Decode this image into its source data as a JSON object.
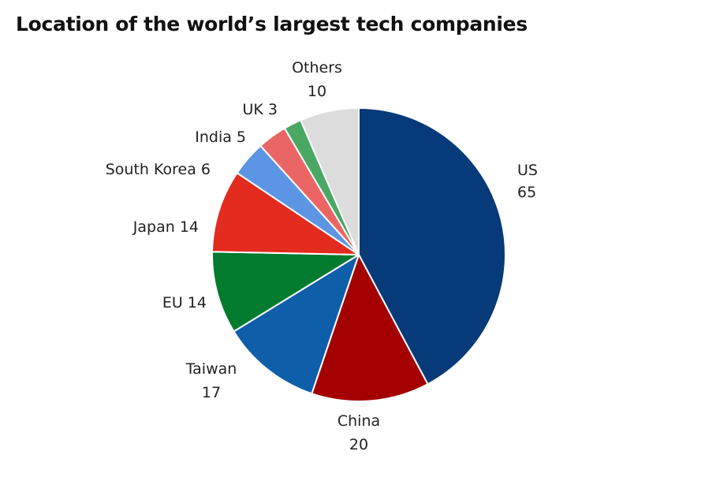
{
  "chart_data": {
    "type": "pie",
    "title": "Location of the world’s largest tech companies",
    "start_angle_deg": 0,
    "direction": "clockwise",
    "slices": [
      {
        "name": "US",
        "value": 65,
        "color": "#063a78",
        "label_lines": [
          "US",
          "65"
        ]
      },
      {
        "name": "China",
        "value": 20,
        "color": "#a40000",
        "label_lines": [
          "China",
          "20"
        ]
      },
      {
        "name": "Taiwan",
        "value": 17,
        "color": "#0e5eaa",
        "label_lines": [
          "Taiwan",
          "17"
        ]
      },
      {
        "name": "EU",
        "value": 14,
        "color": "#037b2f",
        "label_lines": [
          "EU 14"
        ]
      },
      {
        "name": "Japan",
        "value": 14,
        "color": "#e32b1e",
        "label_lines": [
          "Japan 14"
        ]
      },
      {
        "name": "South Korea",
        "value": 6,
        "color": "#5b95e3",
        "label_lines": [
          "South Korea 6"
        ]
      },
      {
        "name": "India",
        "value": 5,
        "color": "#ec6565",
        "label_lines": [
          "India 5"
        ]
      },
      {
        "name": "UK",
        "value": 3,
        "color": "#4aa864",
        "label_lines": [
          "UK 3"
        ]
      },
      {
        "name": "Others",
        "value": 10,
        "color": "#dcdcdc",
        "label_lines": [
          "Others",
          "10"
        ]
      }
    ]
  }
}
